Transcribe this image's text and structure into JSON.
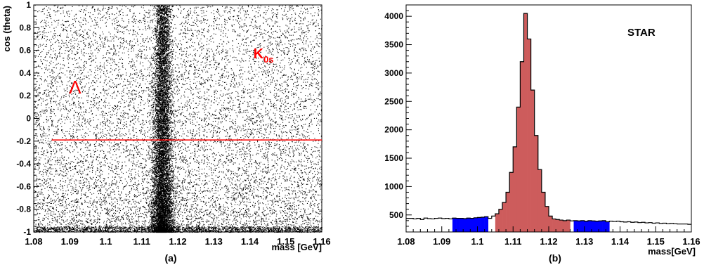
{
  "chart_data": [
    {
      "type": "scatter",
      "panel_label": "(a)",
      "xlabel": "mass [GeV]",
      "ylabel": "cos (theta)",
      "xlim": [
        1.08,
        1.16
      ],
      "ylim": [
        -1,
        1
      ],
      "xticks": [
        "1.08",
        "1.09",
        "1.1",
        "1.11",
        "1.12",
        "1.13",
        "1.14",
        "1.15",
        "1.16"
      ],
      "yticks": [
        "-1",
        "-0.8",
        "-0.6",
        "-0.4",
        "-0.2",
        "0",
        "0.2",
        "0.4",
        "0.6",
        "0.8",
        "1"
      ],
      "band_center_mass": 1.1157,
      "band_width_mass": 0.0022,
      "cut_line": {
        "y": -0.19,
        "x_from": 1.085,
        "x_to": 1.16,
        "color": "#ff0000"
      },
      "annotations": [
        {
          "text": "Λ",
          "x": 1.0915,
          "y": 0.22,
          "color": "#ff0000"
        },
        {
          "text": "K",
          "sub": "0s",
          "x": 1.141,
          "y": 0.53,
          "color": "#ff0000"
        }
      ],
      "grid": false,
      "legend": "none"
    },
    {
      "type": "bar",
      "panel_label": "(b)",
      "title": "STAR",
      "xlabel": "mass[GeV]",
      "ylabel": "",
      "xlim": [
        1.08,
        1.16
      ],
      "ylim": [
        200,
        4200
      ],
      "xticks": [
        "1.08",
        "1.09",
        "1.1",
        "1.11",
        "1.12",
        "1.13",
        "1.14",
        "1.15",
        "1.16"
      ],
      "yticks": [
        "500",
        "1000",
        "1500",
        "2000",
        "2500",
        "3000",
        "3500",
        "4000"
      ],
      "bin_width": 0.001,
      "x_start": 1.08,
      "values": [
        440,
        440,
        430,
        440,
        420,
        445,
        435,
        430,
        440,
        445,
        435,
        440,
        430,
        445,
        440,
        440,
        435,
        445,
        440,
        450,
        455,
        460,
        470,
        440,
        480,
        520,
        600,
        720,
        900,
        1250,
        1700,
        2400,
        3200,
        4050,
        3600,
        2700,
        1900,
        1300,
        900,
        650,
        480,
        430,
        420,
        410,
        400,
        410,
        395,
        400,
        395,
        400,
        390,
        400,
        395,
        390,
        395,
        400,
        380,
        390,
        385,
        390,
        380,
        375,
        380,
        370,
        375,
        365,
        370,
        360,
        365,
        355,
        360,
        350,
        355,
        345,
        350,
        345,
        340,
        340,
        340,
        335
      ],
      "signal_range": [
        1.105,
        1.126
      ],
      "sideband_ranges": [
        [
          1.093,
          1.103
        ],
        [
          1.127,
          1.137
        ]
      ],
      "colors": {
        "signal": "#cd5c5c",
        "sideband": "#0000ff",
        "outline": "#000000"
      },
      "grid": false,
      "legend": "none"
    }
  ]
}
